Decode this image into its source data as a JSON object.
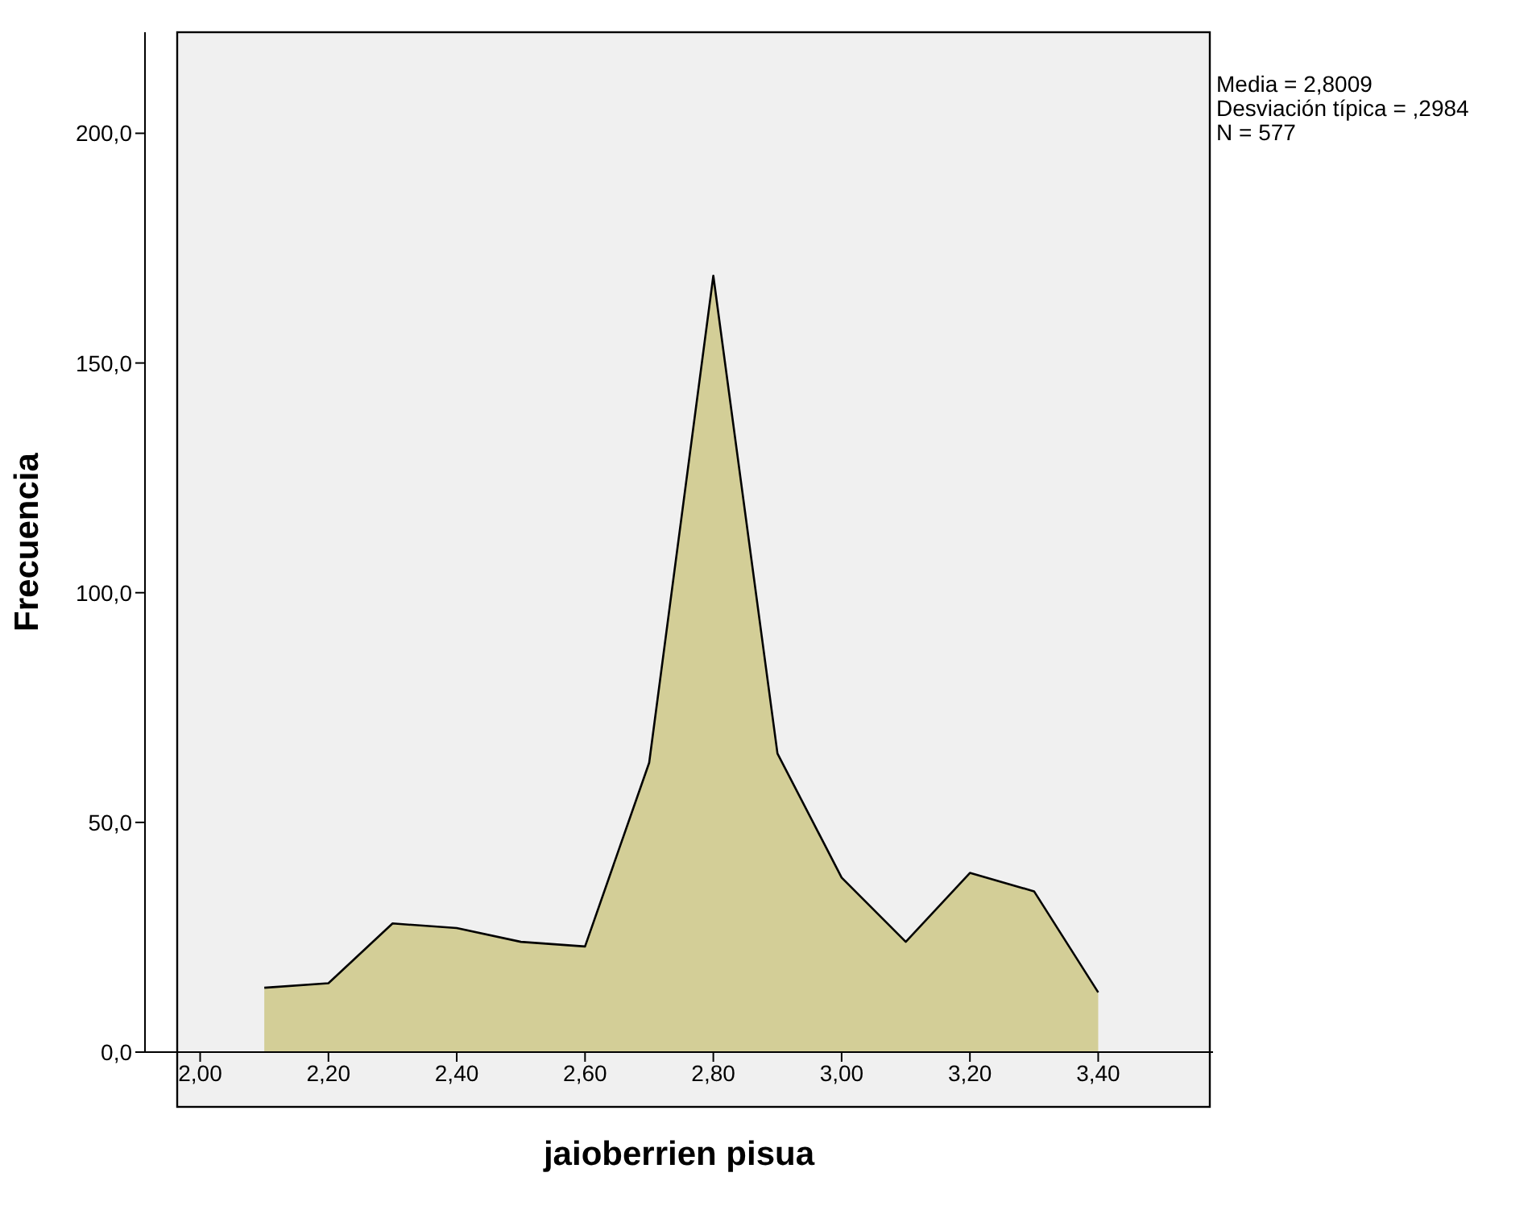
{
  "chart_data": {
    "type": "area",
    "xlabel": "jaioberrien pisua",
    "ylabel": "Frecuencia",
    "x": [
      2.1,
      2.2,
      2.3,
      2.4,
      2.5,
      2.6,
      2.7,
      2.8,
      2.9,
      3.0,
      3.1,
      3.2,
      3.3,
      3.4
    ],
    "series": [
      {
        "color": "#d3ce97",
        "values": [
          14,
          15,
          28,
          27,
          24,
          23,
          63,
          169,
          65,
          38,
          24,
          39,
          35,
          13
        ]
      }
    ],
    "xlim": [
      1.914,
      3.579
    ],
    "xticks": [
      {
        "value": 2.0,
        "label": "2,00"
      },
      {
        "value": 2.2,
        "label": "2,20"
      },
      {
        "value": 2.4,
        "label": "2,40"
      },
      {
        "value": 2.6,
        "label": "2,60"
      },
      {
        "value": 2.8,
        "label": "2,80"
      },
      {
        "value": 3.0,
        "label": "3,00"
      },
      {
        "value": 3.2,
        "label": "3,20"
      },
      {
        "value": 3.4,
        "label": "3,40"
      }
    ],
    "ylim": [
      0,
      222
    ],
    "yticks": [
      {
        "value": 0,
        "label": "0,0"
      },
      {
        "value": 50,
        "label": "50,0"
      },
      {
        "value": 100,
        "label": "100,0"
      },
      {
        "value": 150,
        "label": "150,0"
      },
      {
        "value": 200,
        "label": "200,0"
      }
    ],
    "grid": false,
    "legend": false,
    "annotations": [
      "Media = 2,8009",
      "Desviación típica = ,2984",
      "N = 577"
    ]
  }
}
